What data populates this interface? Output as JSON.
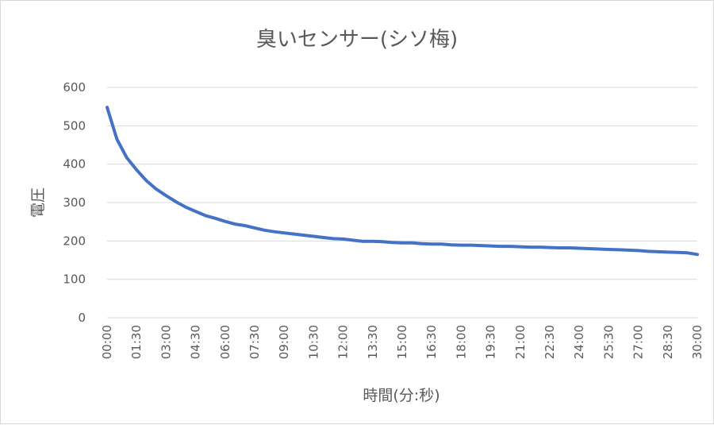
{
  "chart_data": {
    "type": "line",
    "title": "臭いセンサー(シソ梅)",
    "xlabel": "時間(分:秒)",
    "ylabel": "電圧",
    "ylim": [
      0,
      600
    ],
    "yticks": [
      0,
      100,
      200,
      300,
      400,
      500,
      600
    ],
    "grid": true,
    "legend": "none",
    "series_color": "#4472c4",
    "x_tick_labels": [
      "00:00",
      "01:30",
      "03:00",
      "04:30",
      "06:00",
      "07:30",
      "09:00",
      "10:30",
      "12:00",
      "13:30",
      "15:00",
      "16:30",
      "18:00",
      "19:30",
      "21:00",
      "22:30",
      "24:00",
      "25:30",
      "27:00",
      "28:30",
      "30:00"
    ],
    "x": [
      "00:00",
      "00:30",
      "01:00",
      "01:30",
      "02:00",
      "02:30",
      "03:00",
      "03:30",
      "04:00",
      "04:30",
      "05:00",
      "05:30",
      "06:00",
      "06:30",
      "07:00",
      "07:30",
      "08:00",
      "08:30",
      "09:00",
      "09:30",
      "10:00",
      "10:30",
      "11:00",
      "11:30",
      "12:00",
      "12:30",
      "13:00",
      "13:30",
      "14:00",
      "14:30",
      "15:00",
      "15:30",
      "16:00",
      "16:30",
      "17:00",
      "17:30",
      "18:00",
      "18:30",
      "19:00",
      "19:30",
      "20:00",
      "20:30",
      "21:00",
      "21:30",
      "22:00",
      "22:30",
      "23:00",
      "23:30",
      "24:00",
      "24:30",
      "25:00",
      "25:30",
      "26:00",
      "26:30",
      "27:00",
      "27:30",
      "28:00",
      "28:30",
      "29:00",
      "29:30",
      "30:00"
    ],
    "series": [
      {
        "values": [
          548,
          465,
          417,
          385,
          357,
          335,
          318,
          302,
          288,
          277,
          266,
          259,
          251,
          244,
          240,
          234,
          228,
          224,
          221,
          218,
          215,
          212,
          209,
          206,
          205,
          202,
          199,
          199,
          198,
          196,
          195,
          195,
          193,
          192,
          192,
          190,
          189,
          189,
          188,
          187,
          186,
          186,
          185,
          184,
          184,
          183,
          182,
          182,
          181,
          180,
          179,
          178,
          177,
          176,
          175,
          173,
          172,
          171,
          170,
          169,
          165
        ]
      }
    ]
  }
}
